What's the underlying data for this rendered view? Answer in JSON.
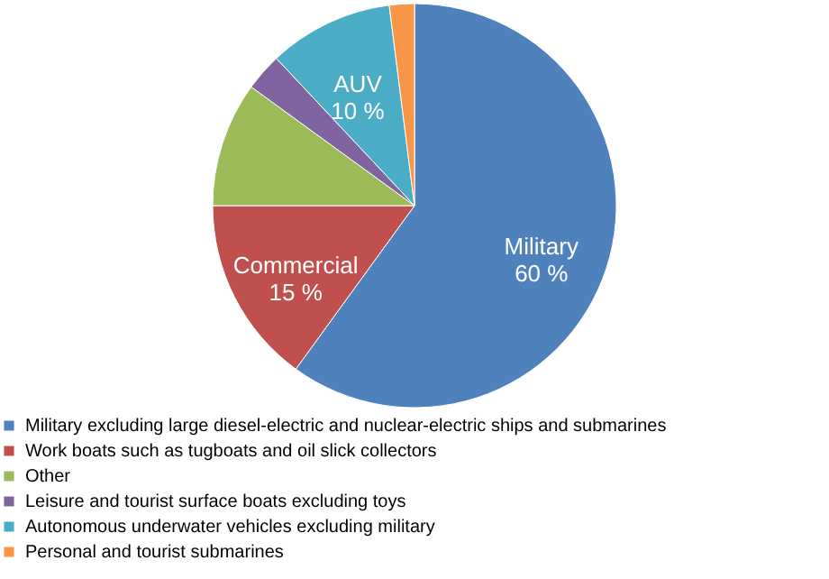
{
  "chart_data": {
    "type": "pie",
    "categories": [
      "Military excluding large diesel-electric and nuclear-electric ships and submarines",
      "Work boats such as tugboats and oil slick collectors",
      "Other",
      "Leisure and tourist surface boats excluding toys",
      "Autonomous underwater vehicles excluding military",
      "Personal and tourist submarines"
    ],
    "values": [
      60,
      15,
      10,
      3,
      10,
      2
    ],
    "colors": [
      "#4f81bd",
      "#c0504d",
      "#9bbb59",
      "#8064a2",
      "#4bacc6",
      "#f79646"
    ],
    "value_labels": [
      "Military\n60 %",
      "Commercial\n15 %",
      null,
      null,
      "AUV\n10 %",
      null
    ],
    "legend": "bottom"
  }
}
